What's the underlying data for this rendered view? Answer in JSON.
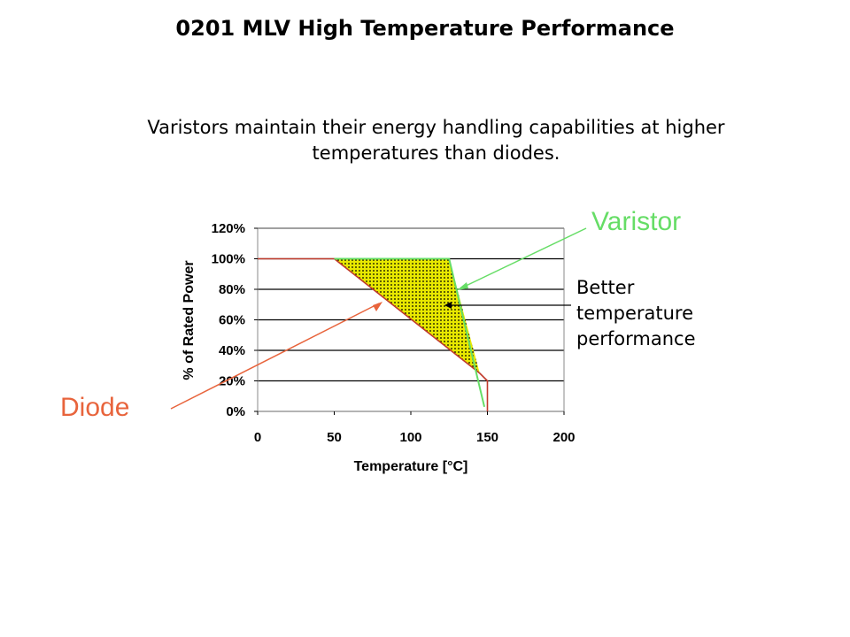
{
  "title": "0201 MLV High Temperature Performance",
  "subtitle": "Varistors maintain their energy handling capabilities at higher temperatures than diodes.",
  "annotations": {
    "varistor": "Varistor",
    "diode": "Diode",
    "better": [
      "Better",
      "temperature",
      "performance"
    ]
  },
  "colors": {
    "varistor": "#66dd66",
    "diode": "#e8643c",
    "diode_line": "#c0392b",
    "fill": "#e8e800"
  },
  "chart_data": {
    "type": "line",
    "xlabel": "Temperature [°C]",
    "ylabel": "% of Rated Power",
    "xlim": [
      0,
      200
    ],
    "ylim": [
      0,
      120
    ],
    "xticks": [
      "0",
      "50",
      "100",
      "150",
      "200"
    ],
    "yticks": [
      "0%",
      "20%",
      "40%",
      "60%",
      "80%",
      "100%",
      "120%"
    ],
    "grid": "horizontal",
    "series": [
      {
        "name": "Diode",
        "x": [
          0,
          50,
          145,
          150,
          150
        ],
        "y": [
          100,
          100,
          25,
          20,
          0
        ]
      },
      {
        "name": "Varistor",
        "x": [
          50,
          125,
          148
        ],
        "y": [
          100,
          100,
          3
        ]
      }
    ],
    "shaded_region": "between Diode and Varistor curves"
  }
}
